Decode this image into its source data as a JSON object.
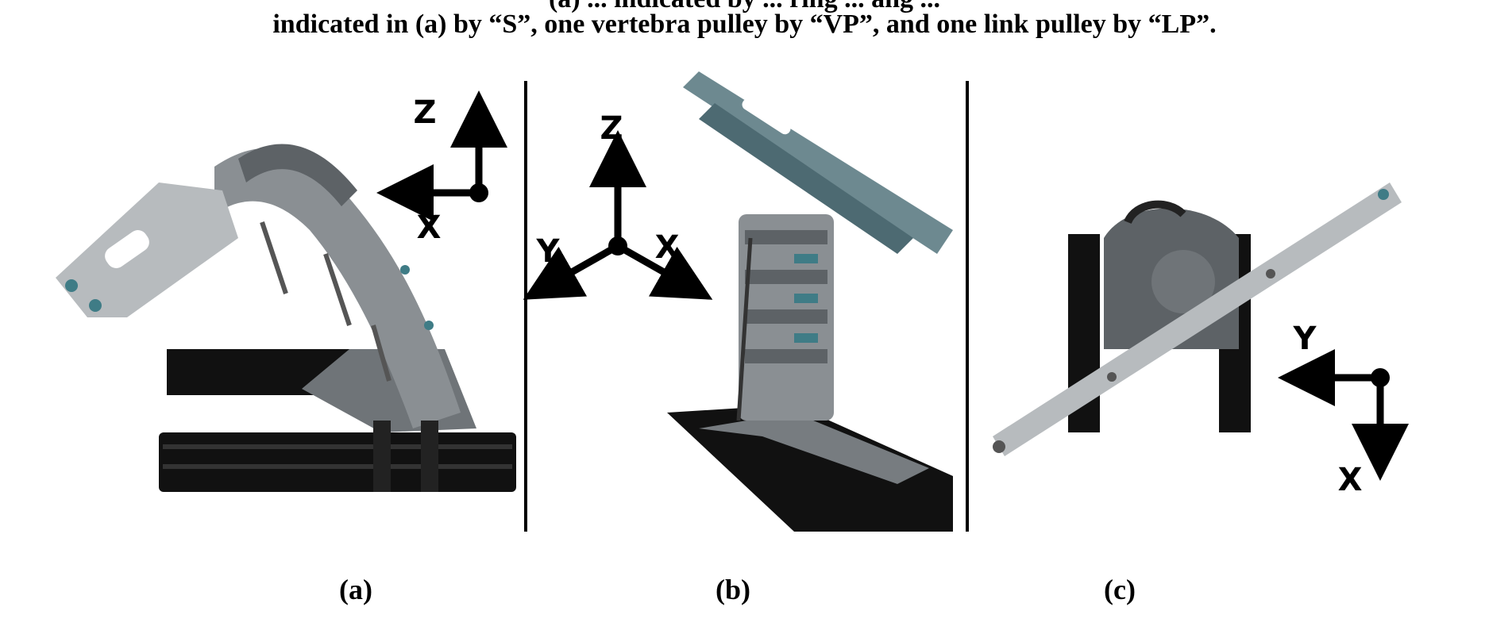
{
  "caption": {
    "line1": "(a) ... indicated by ... ring ... ang ...",
    "line2": "indicated in (a) by “S”, one vertebra pulley by “VP”, and one link pulley by “LP”."
  },
  "panels": [
    {
      "label": "(a)",
      "axes": {
        "vertical": "Z",
        "horizontal": "X"
      }
    },
    {
      "label": "(b)",
      "axes": {
        "vertical": "Z",
        "left": "Y",
        "right": "X"
      }
    },
    {
      "label": "(c)",
      "axes": {
        "left": "Y",
        "down": "X"
      }
    }
  ],
  "colors": {
    "frame": "#111111",
    "metal": "#8a8f93",
    "teal": "#3f7c86",
    "axis": "#000000"
  }
}
